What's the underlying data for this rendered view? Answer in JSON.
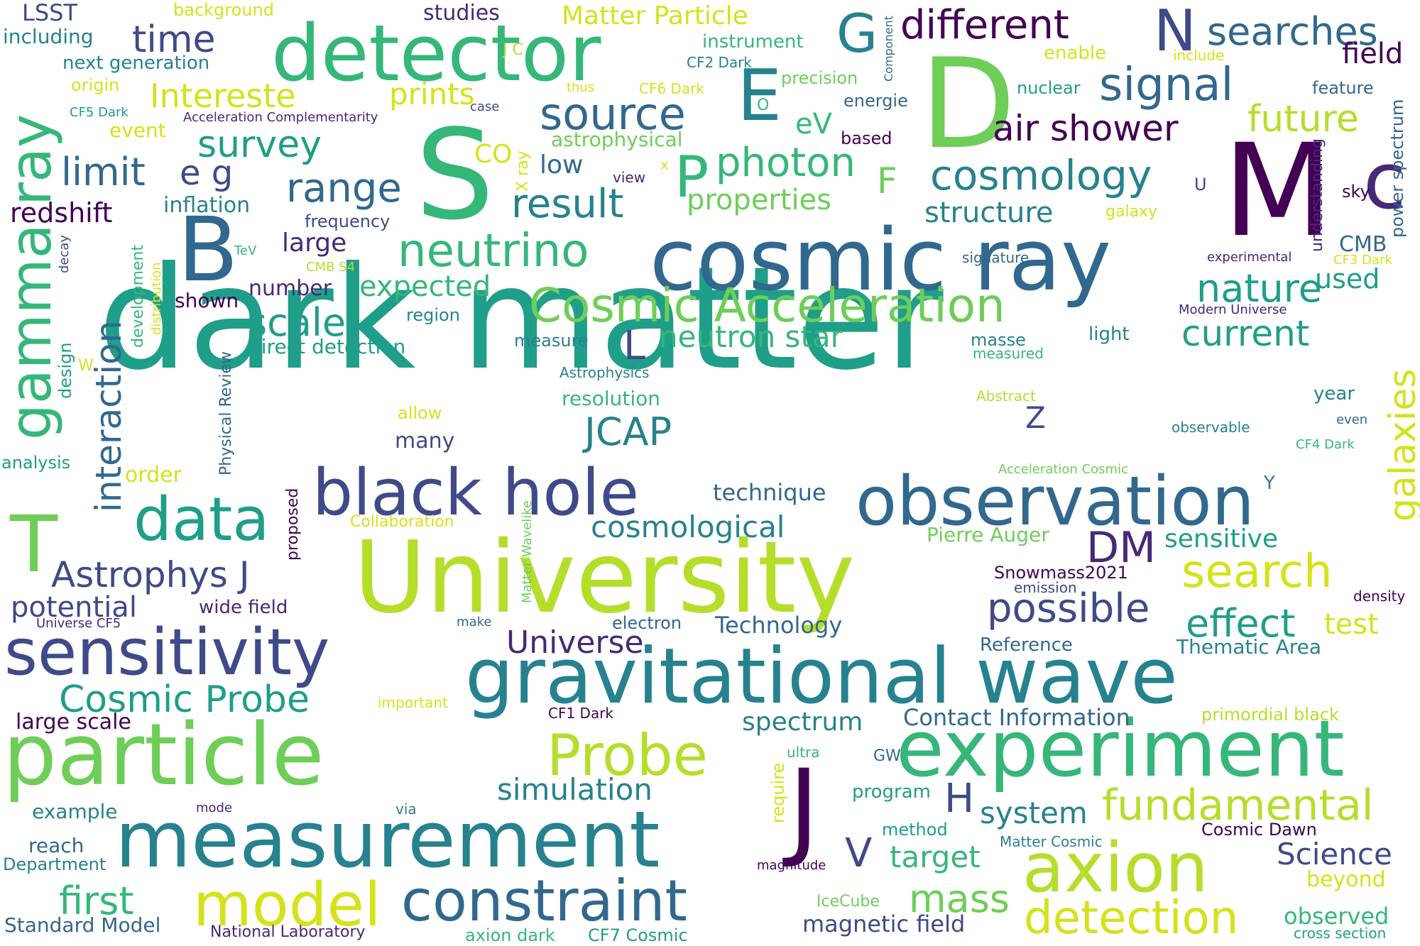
{
  "palette": {
    "purple": "#440154",
    "indigo": "#482878",
    "blue": "#3e4a89",
    "slate": "#31688e",
    "teal": "#26828e",
    "sea": "#1f9e89",
    "green": "#35b779",
    "lime": "#6ece58",
    "yellowgreen": "#b5de2b",
    "yellow": "#d5e21a"
  },
  "words": [
    "dark matter",
    "University",
    "cosmic ray",
    "gravitational wave",
    "particle",
    "experiment",
    "measurement",
    "observation",
    "detector",
    "black hole",
    "sensitivity",
    "axion",
    "constraint",
    "S",
    "D",
    "M",
    "c",
    "B",
    "J",
    "gamma ray",
    "model",
    "data",
    "neutrino",
    "Cosmic Acceleration",
    "Probe",
    "fundamental",
    "detection",
    "E",
    "G",
    "P",
    "T",
    "N",
    "different",
    "searches",
    "photon",
    "cosmology",
    "signal",
    "air shower",
    "future",
    "source",
    "survey",
    "range",
    "result",
    "time",
    "limit",
    "e g",
    "redshift",
    "inflation",
    "interaction",
    "scale",
    "expected",
    "nature",
    "current",
    "neutron star",
    "galaxies",
    "JCAP",
    "Cosmic Probe",
    "Astrophys J",
    "potential",
    "DM",
    "search",
    "possible",
    "effect",
    "mass",
    "first",
    "cosmological",
    "spectrum",
    "simulation",
    "system",
    "target",
    "Science",
    "magnetic field",
    "Universe",
    "technique",
    "structure",
    "Matter Particle",
    "Intereste",
    "prints",
    "LSST",
    "studies",
    "including",
    "next generation",
    "origin",
    "CF5 Dark",
    "event",
    "Acceleration Complementarity",
    "background",
    "instrument",
    "enable",
    "field",
    "include",
    "CF2 Dark",
    "precision",
    "CF6 Dark",
    "thus",
    "nuclear",
    "feature",
    "energie",
    "based",
    "astrophysical",
    "case",
    "low",
    "view",
    "properties",
    "eV",
    "sky",
    "power spectrum",
    "CMB",
    "used",
    "CF3 Dark",
    "experimental",
    "galaxy",
    "U",
    "understanding",
    "frequency",
    "large",
    "TeV",
    "CMB S4",
    "decay",
    "development",
    "distribution",
    "design",
    "number",
    "shown",
    "region",
    "direct detection",
    "measure",
    "masse",
    "measured",
    "light",
    "Modern Universe",
    "signature",
    "Astrophysics",
    "resolution",
    "Abstract",
    "year",
    "allow",
    "many",
    "observable",
    "even",
    "CF4 Dark",
    "analysis",
    "order",
    "Physical Review",
    "proposed",
    "Matter Wavelike",
    "Collaboration",
    "Acceleration Cosmic",
    "Pierre Auger",
    "sensitive",
    "Y",
    "Z",
    "Snowmass2021",
    "emission",
    "density",
    "wide field",
    "Universe CF5",
    "make",
    "electron",
    "Technology",
    "test",
    "Reference",
    "Thematic Area",
    "important",
    "CF1 Dark",
    "Contact Information",
    "primordial black",
    "large scale",
    "require",
    "ultra",
    "GW",
    "program",
    "example",
    "mode",
    "via",
    "method",
    "Matter Cosmic",
    "Cosmic Dawn",
    "reach",
    "Department",
    "magnitude",
    "IceCube",
    "beyond",
    "observed",
    "Standard Model",
    "National Laboratory",
    "axion dark",
    "CF7 Cosmic",
    "cross section",
    "H",
    "V",
    "L",
    "F",
    "W",
    "J C",
    "O",
    "X ray",
    "CO",
    "x",
    "Component"
  ]
}
